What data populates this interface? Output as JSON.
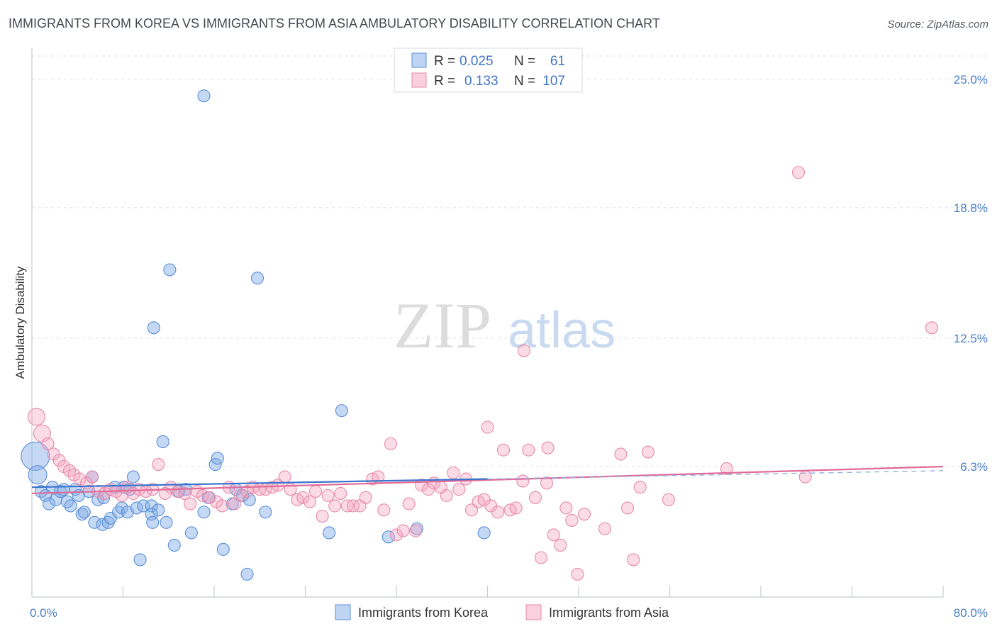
{
  "chart_data": {
    "type": "scatter",
    "title": "IMMIGRANTS FROM KOREA VS IMMIGRANTS FROM ASIA AMBULATORY DISABILITY CORRELATION CHART",
    "source": "Source: ZipAtlas.com",
    "ylabel": "Ambulatory Disability",
    "xlabel": "",
    "xlim": [
      0,
      80
    ],
    "ylim": [
      0,
      26.5
    ],
    "x_tick_labels": [
      "0.0%",
      "80.0%"
    ],
    "y_ticks": [
      {
        "value": 6.3,
        "label": "6.3%"
      },
      {
        "value": 12.5,
        "label": "12.5%"
      },
      {
        "value": 18.8,
        "label": "18.8%"
      },
      {
        "value": 25.0,
        "label": "25.0%"
      }
    ],
    "legend": {
      "rows": [
        {
          "r_label": "R =",
          "r_value": "0.025",
          "n_label": "N =",
          "n_value": "61"
        },
        {
          "r_label": "R =",
          "r_value": "0.133",
          "n_label": "N =",
          "n_value": "107"
        }
      ]
    },
    "watermark": {
      "zip": "ZIP",
      "atlas": "atlas"
    },
    "series": [
      {
        "name": "Immigrants from Korea",
        "color": "#7eaae6",
        "line_color": "#3a74cc",
        "trend": {
          "x": [
            0,
            40
          ],
          "y": [
            5.3,
            5.7
          ]
        },
        "trend_extension": {
          "x": [
            40,
            80
          ],
          "y": [
            5.7,
            6.1
          ]
        },
        "points": [
          {
            "x": 0.3,
            "y": 6.8,
            "r": 20
          },
          {
            "x": 0.5,
            "y": 5.9,
            "r": 13
          },
          {
            "x": 0.8,
            "y": 5.1
          },
          {
            "x": 1.2,
            "y": 4.9
          },
          {
            "x": 1.5,
            "y": 4.5
          },
          {
            "x": 1.8,
            "y": 5.3
          },
          {
            "x": 2.1,
            "y": 4.7
          },
          {
            "x": 2.5,
            "y": 5.1
          },
          {
            "x": 2.8,
            "y": 5.2
          },
          {
            "x": 3.1,
            "y": 4.6
          },
          {
            "x": 3.4,
            "y": 4.4
          },
          {
            "x": 3.8,
            "y": 5.2
          },
          {
            "x": 4.1,
            "y": 4.9
          },
          {
            "x": 4.4,
            "y": 4.0
          },
          {
            "x": 4.6,
            "y": 4.1
          },
          {
            "x": 5.0,
            "y": 5.1
          },
          {
            "x": 5.3,
            "y": 5.8
          },
          {
            "x": 5.5,
            "y": 3.6
          },
          {
            "x": 5.8,
            "y": 4.7
          },
          {
            "x": 6.2,
            "y": 3.5
          },
          {
            "x": 6.3,
            "y": 4.8
          },
          {
            "x": 6.7,
            "y": 3.6
          },
          {
            "x": 6.9,
            "y": 3.8
          },
          {
            "x": 7.3,
            "y": 5.3
          },
          {
            "x": 7.6,
            "y": 4.1
          },
          {
            "x": 7.9,
            "y": 4.3
          },
          {
            "x": 8.1,
            "y": 5.3
          },
          {
            "x": 8.4,
            "y": 4.1
          },
          {
            "x": 8.6,
            "y": 5.2
          },
          {
            "x": 8.9,
            "y": 5.8
          },
          {
            "x": 9.2,
            "y": 4.3
          },
          {
            "x": 9.5,
            "y": 1.8
          },
          {
            "x": 9.8,
            "y": 4.4
          },
          {
            "x": 10.5,
            "y": 4.4
          },
          {
            "x": 10.5,
            "y": 4.0
          },
          {
            "x": 10.6,
            "y": 3.6
          },
          {
            "x": 11.1,
            "y": 4.2
          },
          {
            "x": 11.5,
            "y": 7.5
          },
          {
            "x": 11.8,
            "y": 3.6
          },
          {
            "x": 12.5,
            "y": 2.5
          },
          {
            "x": 12.9,
            "y": 5.1
          },
          {
            "x": 13.5,
            "y": 5.2
          },
          {
            "x": 14.0,
            "y": 3.1
          },
          {
            "x": 15.1,
            "y": 4.1
          },
          {
            "x": 15.5,
            "y": 4.8
          },
          {
            "x": 16.1,
            "y": 6.4
          },
          {
            "x": 16.3,
            "y": 6.7
          },
          {
            "x": 16.8,
            "y": 2.3
          },
          {
            "x": 17.6,
            "y": 4.5
          },
          {
            "x": 17.9,
            "y": 5.2
          },
          {
            "x": 18.5,
            "y": 4.9
          },
          {
            "x": 18.9,
            "y": 1.1
          },
          {
            "x": 19.1,
            "y": 4.7
          },
          {
            "x": 20.5,
            "y": 4.1
          },
          {
            "x": 26.1,
            "y": 3.1
          },
          {
            "x": 27.2,
            "y": 9.0
          },
          {
            "x": 31.3,
            "y": 2.9
          },
          {
            "x": 33.8,
            "y": 3.3
          },
          {
            "x": 39.7,
            "y": 3.1
          },
          {
            "x": 10.7,
            "y": 13.0
          },
          {
            "x": 12.1,
            "y": 15.8
          },
          {
            "x": 19.8,
            "y": 15.4
          },
          {
            "x": 15.1,
            "y": 24.2
          }
        ]
      },
      {
        "name": "Immigrants from Asia",
        "color": "#f5a0be",
        "line_color": "#e06a98",
        "trend": {
          "x": [
            0,
            80
          ],
          "y": [
            5.0,
            6.3
          ]
        },
        "points": [
          {
            "x": 0.4,
            "y": 8.7,
            "r": 12
          },
          {
            "x": 0.9,
            "y": 7.9,
            "r": 12
          },
          {
            "x": 1.4,
            "y": 7.4
          },
          {
            "x": 1.9,
            "y": 6.9
          },
          {
            "x": 2.4,
            "y": 6.6
          },
          {
            "x": 2.8,
            "y": 6.3
          },
          {
            "x": 3.3,
            "y": 6.1
          },
          {
            "x": 3.7,
            "y": 5.9
          },
          {
            "x": 4.2,
            "y": 5.7
          },
          {
            "x": 4.8,
            "y": 5.5
          },
          {
            "x": 5.3,
            "y": 5.8
          },
          {
            "x": 5.8,
            "y": 5.1
          },
          {
            "x": 6.4,
            "y": 5.0
          },
          {
            "x": 6.9,
            "y": 5.2
          },
          {
            "x": 7.4,
            "y": 5.1
          },
          {
            "x": 7.9,
            "y": 4.9
          },
          {
            "x": 8.4,
            "y": 5.3
          },
          {
            "x": 8.9,
            "y": 5.0
          },
          {
            "x": 9.4,
            "y": 5.2
          },
          {
            "x": 10.0,
            "y": 5.1
          },
          {
            "x": 10.6,
            "y": 5.2
          },
          {
            "x": 11.1,
            "y": 6.4
          },
          {
            "x": 11.7,
            "y": 5.0
          },
          {
            "x": 12.2,
            "y": 5.3
          },
          {
            "x": 12.8,
            "y": 5.1
          },
          {
            "x": 13.4,
            "y": 5.0
          },
          {
            "x": 13.9,
            "y": 4.5
          },
          {
            "x": 14.5,
            "y": 5.1
          },
          {
            "x": 15.0,
            "y": 4.9
          },
          {
            "x": 15.6,
            "y": 4.8
          },
          {
            "x": 16.2,
            "y": 4.6
          },
          {
            "x": 16.7,
            "y": 4.4
          },
          {
            "x": 17.3,
            "y": 5.3
          },
          {
            "x": 17.8,
            "y": 4.5
          },
          {
            "x": 18.3,
            "y": 4.9
          },
          {
            "x": 18.9,
            "y": 5.1
          },
          {
            "x": 19.4,
            "y": 5.3
          },
          {
            "x": 20.0,
            "y": 5.2
          },
          {
            "x": 20.5,
            "y": 5.2
          },
          {
            "x": 21.1,
            "y": 5.3
          },
          {
            "x": 21.6,
            "y": 5.4
          },
          {
            "x": 22.2,
            "y": 5.8
          },
          {
            "x": 22.7,
            "y": 5.2
          },
          {
            "x": 23.3,
            "y": 4.7
          },
          {
            "x": 23.8,
            "y": 4.8
          },
          {
            "x": 24.4,
            "y": 4.6
          },
          {
            "x": 24.9,
            "y": 5.1
          },
          {
            "x": 25.5,
            "y": 3.9
          },
          {
            "x": 26.0,
            "y": 4.9
          },
          {
            "x": 26.6,
            "y": 4.4
          },
          {
            "x": 27.1,
            "y": 5.0
          },
          {
            "x": 27.7,
            "y": 4.4
          },
          {
            "x": 28.2,
            "y": 4.4
          },
          {
            "x": 28.8,
            "y": 4.4
          },
          {
            "x": 29.3,
            "y": 4.8
          },
          {
            "x": 29.9,
            "y": 5.7
          },
          {
            "x": 30.4,
            "y": 5.8
          },
          {
            "x": 30.9,
            "y": 4.2
          },
          {
            "x": 31.5,
            "y": 7.4
          },
          {
            "x": 32.0,
            "y": 3.0
          },
          {
            "x": 32.6,
            "y": 3.2
          },
          {
            "x": 33.1,
            "y": 4.5
          },
          {
            "x": 33.7,
            "y": 3.2
          },
          {
            "x": 34.2,
            "y": 5.4
          },
          {
            "x": 34.8,
            "y": 5.2
          },
          {
            "x": 35.3,
            "y": 5.5
          },
          {
            "x": 35.9,
            "y": 5.3
          },
          {
            "x": 36.4,
            "y": 4.9
          },
          {
            "x": 37.0,
            "y": 6.0
          },
          {
            "x": 37.5,
            "y": 5.2
          },
          {
            "x": 38.1,
            "y": 5.7
          },
          {
            "x": 38.6,
            "y": 4.2
          },
          {
            "x": 39.2,
            "y": 4.6
          },
          {
            "x": 39.7,
            "y": 4.7
          },
          {
            "x": 40.0,
            "y": 8.2
          },
          {
            "x": 40.3,
            "y": 4.4
          },
          {
            "x": 40.9,
            "y": 4.1
          },
          {
            "x": 41.4,
            "y": 7.1
          },
          {
            "x": 42.0,
            "y": 4.2
          },
          {
            "x": 42.5,
            "y": 4.3
          },
          {
            "x": 43.1,
            "y": 5.6
          },
          {
            "x": 43.6,
            "y": 7.1
          },
          {
            "x": 44.2,
            "y": 4.8
          },
          {
            "x": 44.7,
            "y": 1.9
          },
          {
            "x": 45.3,
            "y": 7.2
          },
          {
            "x": 45.8,
            "y": 3.0
          },
          {
            "x": 46.4,
            "y": 2.5
          },
          {
            "x": 46.9,
            "y": 4.3
          },
          {
            "x": 47.4,
            "y": 3.7
          },
          {
            "x": 47.9,
            "y": 1.1
          },
          {
            "x": 48.5,
            "y": 4.0
          },
          {
            "x": 50.3,
            "y": 3.3
          },
          {
            "x": 51.7,
            "y": 6.9
          },
          {
            "x": 52.3,
            "y": 4.3
          },
          {
            "x": 52.8,
            "y": 1.8
          },
          {
            "x": 53.4,
            "y": 5.3
          },
          {
            "x": 54.1,
            "y": 7.0
          },
          {
            "x": 55.9,
            "y": 4.7
          },
          {
            "x": 61.0,
            "y": 6.2
          },
          {
            "x": 67.9,
            "y": 5.8
          },
          {
            "x": 45.2,
            "y": 5.5
          },
          {
            "x": 43.2,
            "y": 11.9
          },
          {
            "x": 67.3,
            "y": 20.5
          },
          {
            "x": 79.0,
            "y": 13.0
          }
        ]
      }
    ]
  }
}
